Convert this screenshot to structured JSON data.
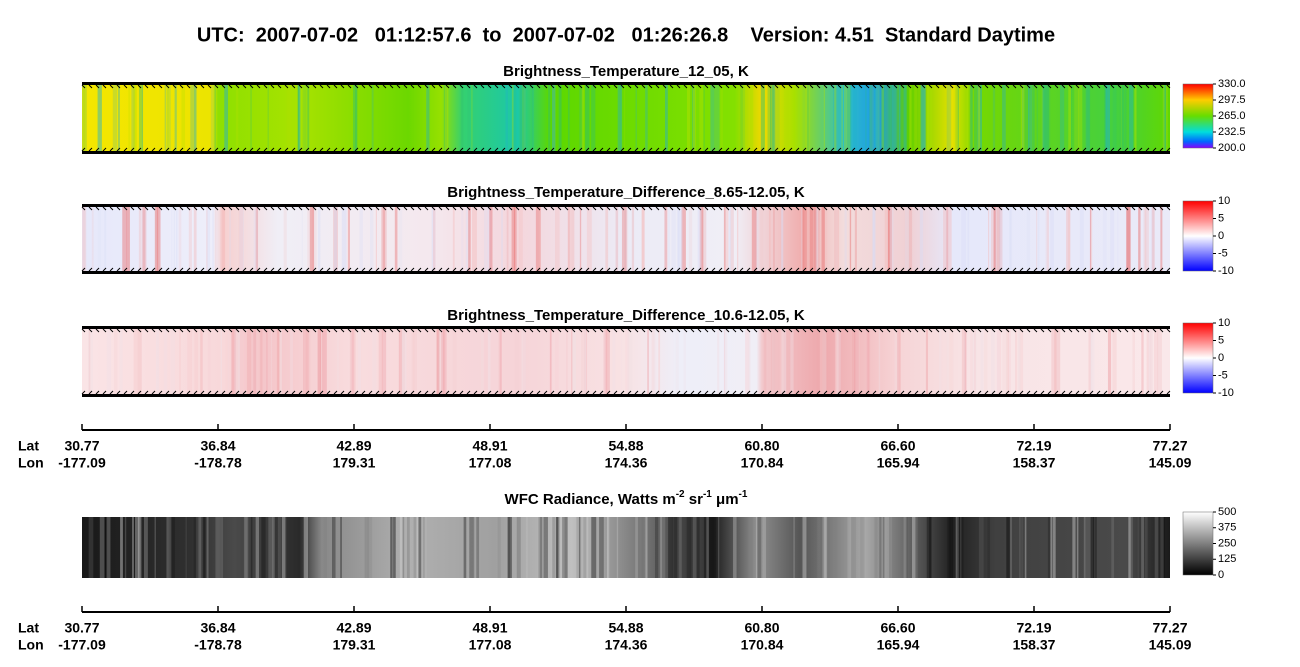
{
  "header": {
    "title": "UTC:  2007-07-02   01:12:57.6  to  2007-07-02   01:26:26.8    Version: 4.51  Standard Daytime"
  },
  "panels": [
    {
      "title": "Brightness_Temperature_12_05, K",
      "colorbar": [
        "330.0",
        "297.5",
        "265.0",
        "232.5",
        "200.0"
      ]
    },
    {
      "title": "Brightness_Temperature_Difference_8.65-12.05, K",
      "colorbar": [
        "10",
        "5",
        "0",
        "-5",
        "-10"
      ]
    },
    {
      "title": "Brightness_Temperature_Difference_10.6-12.05, K",
      "colorbar": [
        "10",
        "5",
        "0",
        "-5",
        "-10"
      ]
    },
    {
      "title_parts": [
        {
          "text": "WFC Radiance, Watts m"
        },
        {
          "sup": "-2"
        },
        {
          "text": " sr"
        },
        {
          "sup": "-1"
        },
        {
          "text": " μm"
        },
        {
          "sup": "-1"
        }
      ],
      "colorbar": [
        "500",
        "375",
        "250",
        "125",
        "0"
      ]
    }
  ],
  "axes": [
    {
      "lat_label": "Lat",
      "lon_label": "Lon",
      "lat": [
        "30.77",
        "36.84",
        "42.89",
        "48.91",
        "54.88",
        "60.80",
        "66.60",
        "72.19",
        "77.27"
      ],
      "lon": [
        "-177.09",
        "-178.78",
        "179.31",
        "177.08",
        "174.36",
        "170.84",
        "165.94",
        "158.37",
        "145.09"
      ]
    },
    {
      "lat_label": "Lat",
      "lon_label": "Lon",
      "lat": [
        "30.77",
        "36.84",
        "42.89",
        "48.91",
        "54.88",
        "60.80",
        "66.60",
        "72.19",
        "77.27"
      ],
      "lon": [
        "-177.09",
        "-178.78",
        "179.31",
        "177.08",
        "174.36",
        "170.84",
        "165.94",
        "158.37",
        "145.09"
      ]
    }
  ]
}
